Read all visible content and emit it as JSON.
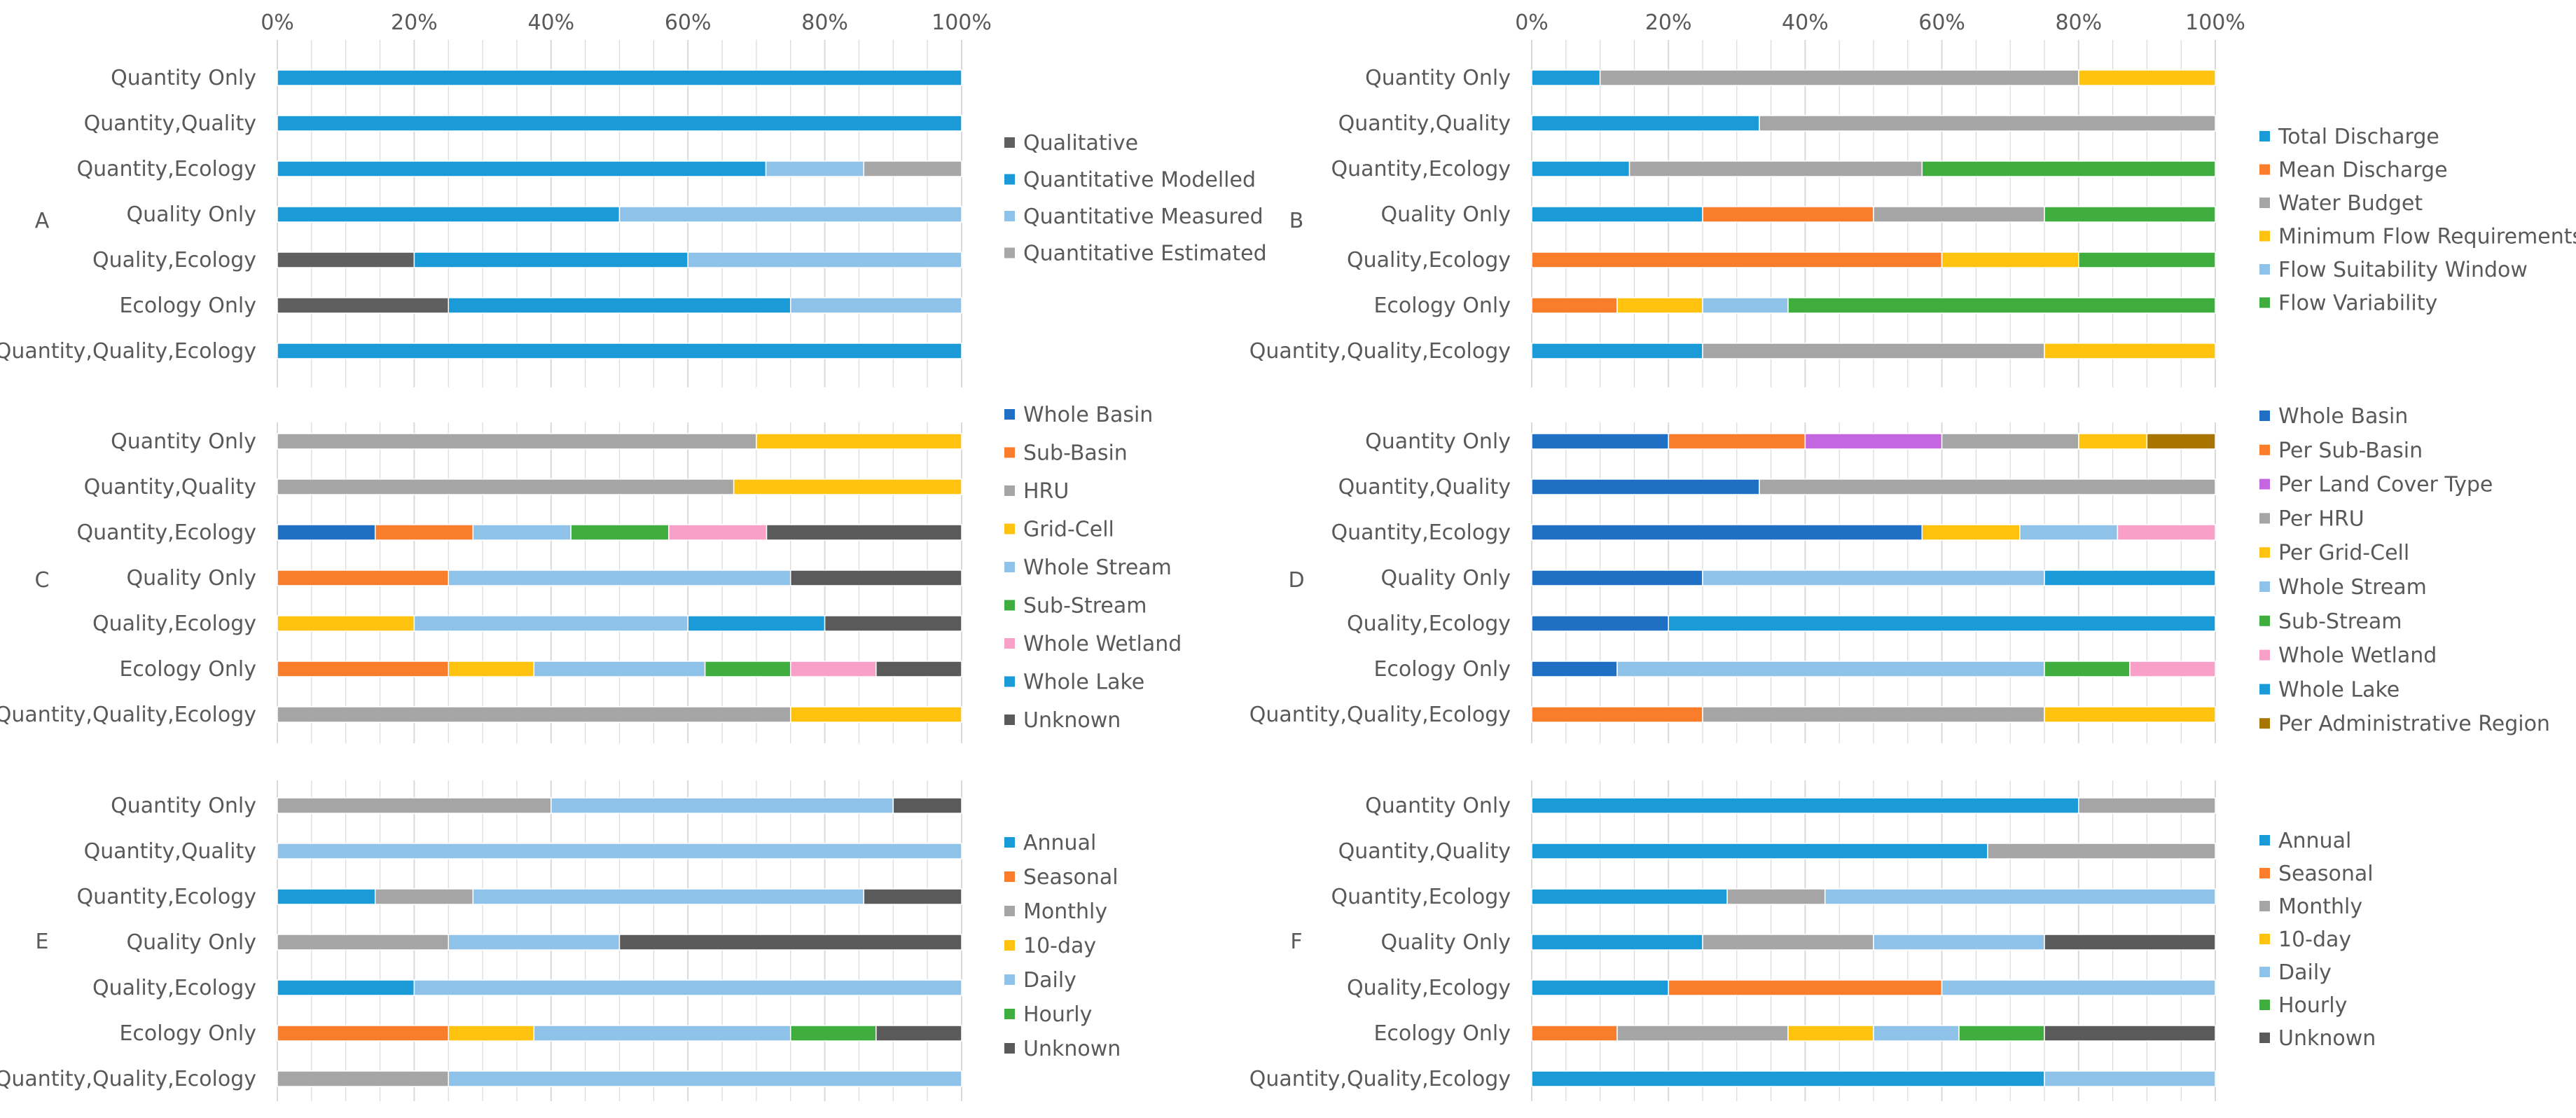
{
  "colors": {
    "qualitative": "#5f5f5f",
    "modelled": "#1b9ad8",
    "measured": "#8ec2e8",
    "estimated": "#a7a7a7",
    "whole_basin": "#1f6fc5",
    "orange": "#fa7d2c",
    "gray": "#a5a5a5",
    "gold": "#ffc20e",
    "light_blue": "#8ec2e8",
    "green": "#3fae3f",
    "pink": "#f8a0c8",
    "lake_blue": "#1b9ad8",
    "dark_gray": "#5a5a5a",
    "purple": "#c466df",
    "brown": "#a87402",
    "grid": "#d9d9d9",
    "text": "#595959"
  },
  "axis_ticks": [
    "0%",
    "20%",
    "40%",
    "60%",
    "80%",
    "100%"
  ],
  "chart_data": [
    {
      "panel": "A",
      "type": "bar",
      "stacked": true,
      "orientation": "horizontal",
      "xlim": [
        0,
        100
      ],
      "categories": [
        "Quantity Only",
        "Quantity,Quality",
        "Quantity,Ecology",
        "Quality Only",
        "Quality,Ecology",
        "Ecology Only",
        "Quantity,Quality,Ecology"
      ],
      "legend": [
        {
          "name": "Qualitative",
          "color": "#5f5f5f"
        },
        {
          "name": "Quantitative Modelled",
          "color": "#1b9ad8"
        },
        {
          "name": "Quantitative Measured",
          "color": "#8ec2e8"
        },
        {
          "name": "Quantitative Estimated",
          "color": "#a7a7a7"
        }
      ],
      "series": [
        {
          "name": "Qualitative",
          "color": "#5f5f5f",
          "values": [
            0,
            0,
            0,
            0,
            20,
            25,
            0
          ]
        },
        {
          "name": "Quantitative Modelled",
          "color": "#1b9ad8",
          "values": [
            100,
            100,
            71.4,
            50,
            40,
            50,
            100
          ]
        },
        {
          "name": "Quantitative Measured",
          "color": "#8ec2e8",
          "values": [
            0,
            0,
            14.3,
            50,
            40,
            25,
            0
          ]
        },
        {
          "name": "Quantitative Estimated",
          "color": "#a7a7a7",
          "values": [
            0,
            0,
            14.3,
            0,
            0,
            0,
            0
          ]
        }
      ]
    },
    {
      "panel": "B",
      "type": "bar",
      "stacked": true,
      "orientation": "horizontal",
      "xlim": [
        0,
        100
      ],
      "categories": [
        "Quantity Only",
        "Quantity,Quality",
        "Quantity,Ecology",
        "Quality Only",
        "Quality,Ecology",
        "Ecology Only",
        "Quantity,Quality,Ecology"
      ],
      "legend": [
        {
          "name": "Total Discharge",
          "color": "#1b9ad8"
        },
        {
          "name": "Mean Discharge",
          "color": "#fa7d2c"
        },
        {
          "name": "Water Budget",
          "color": "#a5a5a5"
        },
        {
          "name": "Minimum Flow Requirements",
          "color": "#ffc20e"
        },
        {
          "name": "Flow Suitability Window",
          "color": "#8ec2e8"
        },
        {
          "name": "Flow Variability",
          "color": "#3fae3f"
        }
      ],
      "series": [
        {
          "name": "Total Discharge",
          "color": "#1b9ad8",
          "values": [
            10,
            33.3,
            14.3,
            25,
            0,
            0,
            25
          ]
        },
        {
          "name": "Mean Discharge",
          "color": "#fa7d2c",
          "values": [
            0,
            0,
            0,
            25,
            60,
            12.5,
            0
          ]
        },
        {
          "name": "Water Budget",
          "color": "#a5a5a5",
          "values": [
            70,
            66.7,
            42.8,
            25,
            0,
            0,
            50
          ]
        },
        {
          "name": "Minimum Flow Requirements",
          "color": "#ffc20e",
          "values": [
            20,
            0,
            0,
            0,
            20,
            12.5,
            25
          ]
        },
        {
          "name": "Flow Suitability Window",
          "color": "#8ec2e8",
          "values": [
            0,
            0,
            0,
            0,
            0,
            12.5,
            0
          ]
        },
        {
          "name": "Flow Variability",
          "color": "#3fae3f",
          "values": [
            0,
            0,
            42.9,
            25,
            20,
            62.5,
            0
          ]
        }
      ]
    },
    {
      "panel": "C",
      "type": "bar",
      "stacked": true,
      "orientation": "horizontal",
      "xlim": [
        0,
        100
      ],
      "categories": [
        "Quantity Only",
        "Quantity,Quality",
        "Quantity,Ecology",
        "Quality Only",
        "Quality,Ecology",
        "Ecology Only",
        "Quantity,Quality,Ecology"
      ],
      "legend": [
        {
          "name": "Whole Basin",
          "color": "#1f6fc5"
        },
        {
          "name": "Sub-Basin",
          "color": "#fa7d2c"
        },
        {
          "name": "HRU",
          "color": "#a5a5a5"
        },
        {
          "name": "Grid-Cell",
          "color": "#ffc20e"
        },
        {
          "name": "Whole Stream",
          "color": "#8ec2e8"
        },
        {
          "name": "Sub-Stream",
          "color": "#3fae3f"
        },
        {
          "name": "Whole Wetland",
          "color": "#f8a0c8"
        },
        {
          "name": "Whole Lake",
          "color": "#1b9ad8"
        },
        {
          "name": "Unknown",
          "color": "#5a5a5a"
        }
      ],
      "series": [
        {
          "name": "Whole Basin",
          "color": "#1f6fc5",
          "values": [
            0,
            0,
            14.3,
            0,
            0,
            0,
            0
          ]
        },
        {
          "name": "Sub-Basin",
          "color": "#fa7d2c",
          "values": [
            0,
            0,
            14.3,
            25,
            0,
            25,
            0
          ]
        },
        {
          "name": "HRU",
          "color": "#a5a5a5",
          "values": [
            70,
            66.7,
            0,
            0,
            0,
            0,
            75
          ]
        },
        {
          "name": "Grid-Cell",
          "color": "#ffc20e",
          "values": [
            30,
            33.3,
            0,
            0,
            20,
            12.5,
            25
          ]
        },
        {
          "name": "Whole Stream",
          "color": "#8ec2e8",
          "values": [
            0,
            0,
            14.3,
            50,
            40,
            25,
            0
          ]
        },
        {
          "name": "Sub-Stream",
          "color": "#3fae3f",
          "values": [
            0,
            0,
            14.3,
            0,
            0,
            12.5,
            0
          ]
        },
        {
          "name": "Whole Wetland",
          "color": "#f8a0c8",
          "values": [
            0,
            0,
            14.3,
            0,
            0,
            12.5,
            0
          ]
        },
        {
          "name": "Whole Lake",
          "color": "#1b9ad8",
          "values": [
            0,
            0,
            0,
            0,
            20,
            0,
            0
          ]
        },
        {
          "name": "Unknown",
          "color": "#5a5a5a",
          "values": [
            0,
            0,
            28.5,
            25,
            20,
            12.5,
            0
          ]
        }
      ]
    },
    {
      "panel": "D",
      "type": "bar",
      "stacked": true,
      "orientation": "horizontal",
      "xlim": [
        0,
        100
      ],
      "categories": [
        "Quantity Only",
        "Quantity,Quality",
        "Quantity,Ecology",
        "Quality Only",
        "Quality,Ecology",
        "Ecology Only",
        "Quantity,Quality,Ecology"
      ],
      "legend": [
        {
          "name": "Whole Basin",
          "color": "#1f6fc5"
        },
        {
          "name": "Per Sub-Basin",
          "color": "#fa7d2c"
        },
        {
          "name": "Per Land Cover Type",
          "color": "#c466df"
        },
        {
          "name": "Per HRU",
          "color": "#a5a5a5"
        },
        {
          "name": "Per Grid-Cell",
          "color": "#ffc20e"
        },
        {
          "name": "Whole Stream",
          "color": "#8ec2e8"
        },
        {
          "name": "Sub-Stream",
          "color": "#3fae3f"
        },
        {
          "name": "Whole Wetland",
          "color": "#f8a0c8"
        },
        {
          "name": "Whole Lake",
          "color": "#1b9ad8"
        },
        {
          "name": "Per Administrative Region",
          "color": "#a87402"
        }
      ],
      "series": [
        {
          "name": "Whole Basin",
          "color": "#1f6fc5",
          "values": [
            20,
            33.3,
            57.1,
            25,
            20,
            12.5,
            0
          ]
        },
        {
          "name": "Per Sub-Basin",
          "color": "#fa7d2c",
          "values": [
            20,
            0,
            0,
            0,
            0,
            0,
            25
          ]
        },
        {
          "name": "Per Land Cover Type",
          "color": "#c466df",
          "values": [
            20,
            0,
            0,
            0,
            0,
            0,
            0
          ]
        },
        {
          "name": "Per HRU",
          "color": "#a5a5a5",
          "values": [
            20,
            66.7,
            0,
            0,
            0,
            0,
            50
          ]
        },
        {
          "name": "Per Grid-Cell",
          "color": "#ffc20e",
          "values": [
            10,
            0,
            14.3,
            0,
            0,
            0,
            25
          ]
        },
        {
          "name": "Whole Stream",
          "color": "#8ec2e8",
          "values": [
            0,
            0,
            14.3,
            50,
            0,
            62.5,
            0
          ]
        },
        {
          "name": "Sub-Stream",
          "color": "#3fae3f",
          "values": [
            0,
            0,
            0,
            0,
            0,
            12.5,
            0
          ]
        },
        {
          "name": "Whole Wetland",
          "color": "#f8a0c8",
          "values": [
            0,
            0,
            14.3,
            0,
            0,
            12.5,
            0
          ]
        },
        {
          "name": "Whole Lake",
          "color": "#1b9ad8",
          "values": [
            0,
            0,
            0,
            25,
            80,
            0,
            0
          ]
        },
        {
          "name": "Per Administrative Region",
          "color": "#a87402",
          "values": [
            10,
            0,
            0,
            0,
            0,
            0,
            0
          ]
        }
      ]
    },
    {
      "panel": "E",
      "type": "bar",
      "stacked": true,
      "orientation": "horizontal",
      "xlim": [
        0,
        100
      ],
      "categories": [
        "Quantity Only",
        "Quantity,Quality",
        "Quantity,Ecology",
        "Quality Only",
        "Quality,Ecology",
        "Ecology Only",
        "Quantity,Quality,Ecology"
      ],
      "legend": [
        {
          "name": "Annual",
          "color": "#1b9ad8"
        },
        {
          "name": "Seasonal",
          "color": "#fa7d2c"
        },
        {
          "name": "Monthly",
          "color": "#a5a5a5"
        },
        {
          "name": "10-day",
          "color": "#ffc20e"
        },
        {
          "name": "Daily",
          "color": "#8ec2e8"
        },
        {
          "name": "Hourly",
          "color": "#3fae3f"
        },
        {
          "name": "Unknown",
          "color": "#5a5a5a"
        }
      ],
      "series": [
        {
          "name": "Annual",
          "color": "#1b9ad8",
          "values": [
            0,
            0,
            14.3,
            0,
            20,
            0,
            0
          ]
        },
        {
          "name": "Seasonal",
          "color": "#fa7d2c",
          "values": [
            0,
            0,
            0,
            0,
            0,
            25,
            0
          ]
        },
        {
          "name": "Monthly",
          "color": "#a5a5a5",
          "values": [
            40,
            0,
            14.3,
            25,
            0,
            0,
            25
          ]
        },
        {
          "name": "10-day",
          "color": "#ffc20e",
          "values": [
            0,
            0,
            0,
            0,
            0,
            12.5,
            0
          ]
        },
        {
          "name": "Daily",
          "color": "#8ec2e8",
          "values": [
            50,
            100,
            57.1,
            25,
            80,
            37.5,
            75
          ]
        },
        {
          "name": "Hourly",
          "color": "#3fae3f",
          "values": [
            0,
            0,
            0,
            0,
            0,
            12.5,
            0
          ]
        },
        {
          "name": "Unknown",
          "color": "#5a5a5a",
          "values": [
            10,
            0,
            14.3,
            50,
            0,
            12.5,
            0
          ]
        }
      ]
    },
    {
      "panel": "F",
      "type": "bar",
      "stacked": true,
      "orientation": "horizontal",
      "xlim": [
        0,
        100
      ],
      "categories": [
        "Quantity Only",
        "Quantity,Quality",
        "Quantity,Ecology",
        "Quality Only",
        "Quality,Ecology",
        "Ecology Only",
        "Quantity,Quality,Ecology"
      ],
      "legend": [
        {
          "name": "Annual",
          "color": "#1b9ad8"
        },
        {
          "name": "Seasonal",
          "color": "#fa7d2c"
        },
        {
          "name": "Monthly",
          "color": "#a5a5a5"
        },
        {
          "name": "10-day",
          "color": "#ffc20e"
        },
        {
          "name": "Daily",
          "color": "#8ec2e8"
        },
        {
          "name": "Hourly",
          "color": "#3fae3f"
        },
        {
          "name": "Unknown",
          "color": "#5a5a5a"
        }
      ],
      "series": [
        {
          "name": "Annual",
          "color": "#1b9ad8",
          "values": [
            80,
            66.7,
            28.6,
            25,
            20,
            0,
            75
          ]
        },
        {
          "name": "Seasonal",
          "color": "#fa7d2c",
          "values": [
            0,
            0,
            0,
            0,
            40,
            12.5,
            0
          ]
        },
        {
          "name": "Monthly",
          "color": "#a5a5a5",
          "values": [
            20,
            33.3,
            14.3,
            25,
            0,
            25,
            0
          ]
        },
        {
          "name": "10-day",
          "color": "#ffc20e",
          "values": [
            0,
            0,
            0,
            0,
            0,
            12.5,
            0
          ]
        },
        {
          "name": "Daily",
          "color": "#8ec2e8",
          "values": [
            0,
            0,
            57.1,
            25,
            40,
            12.5,
            25
          ]
        },
        {
          "name": "Hourly",
          "color": "#3fae3f",
          "values": [
            0,
            0,
            0,
            0,
            0,
            12.5,
            0
          ]
        },
        {
          "name": "Unknown",
          "color": "#5a5a5a",
          "values": [
            0,
            0,
            0,
            25,
            0,
            25,
            0
          ]
        }
      ]
    }
  ]
}
